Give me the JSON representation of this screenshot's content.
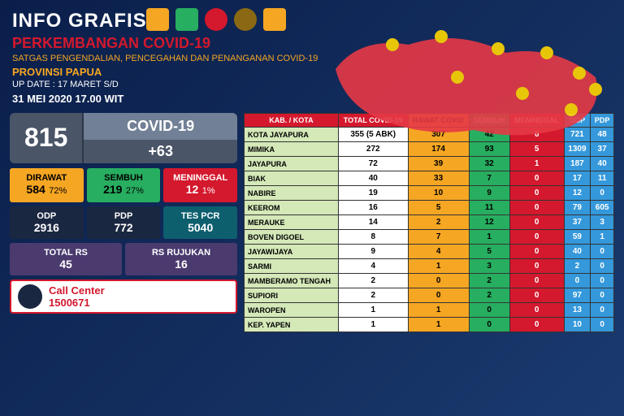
{
  "header": {
    "title": "INFO GRAFIS",
    "subtitle": "PERKEMBANGAN COVID-19",
    "subtext": "SATGAS PENGENDALIAN, PENCEGAHAN DAN PENANGANAN COVID-19",
    "province": "PROVINSI PAPUA",
    "update": "UP DATE : 17 MARET S/D",
    "timestamp": "31 MEI 2020  17.00 WIT"
  },
  "summary": {
    "total": "815",
    "label": "COVID-19",
    "increase": "+63"
  },
  "stats": {
    "dirawat": {
      "label": "DIRAWAT",
      "value": "584",
      "pct": "72%"
    },
    "sembuh": {
      "label": "SEMBUH",
      "value": "219",
      "pct": "27%"
    },
    "meninggal": {
      "label": "MENINGGAL",
      "value": "12",
      "pct": "1%"
    },
    "odp": {
      "label": "ODP",
      "value": "2916"
    },
    "pdp": {
      "label": "PDP",
      "value": "772"
    },
    "tespcr": {
      "label": "TES PCR",
      "value": "5040"
    },
    "totalrs": {
      "label": "TOTAL RS",
      "value": "45"
    },
    "rsrujukan": {
      "label": "RS RUJUKAN",
      "value": "16"
    }
  },
  "callcenter": {
    "label": "Call Center",
    "number": "1500671"
  },
  "table": {
    "headers": [
      "KAB. / KOTA",
      "TOTAL COVID-19",
      "RAWAT COVID",
      "SEMBUH",
      "MENINGGAL",
      "ODP",
      "PDP"
    ],
    "rows": [
      [
        "KOTA JAYAPURA",
        "355 (5 ABK)",
        "307",
        "42",
        "6",
        "721",
        "48"
      ],
      [
        "MIMIKA",
        "272",
        "174",
        "93",
        "5",
        "1309",
        "37"
      ],
      [
        "JAYAPURA",
        "72",
        "39",
        "32",
        "1",
        "187",
        "40"
      ],
      [
        "BIAK",
        "40",
        "33",
        "7",
        "0",
        "17",
        "11"
      ],
      [
        "NABIRE",
        "19",
        "10",
        "9",
        "0",
        "12",
        "0"
      ],
      [
        "KEEROM",
        "16",
        "5",
        "11",
        "0",
        "79",
        "605"
      ],
      [
        "MERAUKE",
        "14",
        "2",
        "12",
        "0",
        "37",
        "3"
      ],
      [
        "BOVEN DIGOEL",
        "8",
        "7",
        "1",
        "0",
        "59",
        "1"
      ],
      [
        "JAYAWIJAYA",
        "9",
        "4",
        "5",
        "0",
        "40",
        "0"
      ],
      [
        "SARMI",
        "4",
        "1",
        "3",
        "0",
        "2",
        "0"
      ],
      [
        "MAMBERAMO TENGAH",
        "2",
        "0",
        "2",
        "0",
        "0",
        "0"
      ],
      [
        "SUPIORI",
        "2",
        "0",
        "2",
        "0",
        "97",
        "0"
      ],
      [
        "WAROPEN",
        "1",
        "1",
        "0",
        "0",
        "13",
        "0"
      ],
      [
        "KEP. YAPEN",
        "1",
        "1",
        "0",
        "0",
        "10",
        "0"
      ]
    ]
  },
  "colors": {
    "bg_dark": "#0a1e4a",
    "red": "#d4182d",
    "orange": "#f5a623",
    "green": "#27ae60",
    "blue": "#3498db",
    "teal": "#0d5f6e",
    "purple": "#4a3a6e",
    "map_red": "#e63946",
    "pin_yellow": "#ffd700"
  }
}
